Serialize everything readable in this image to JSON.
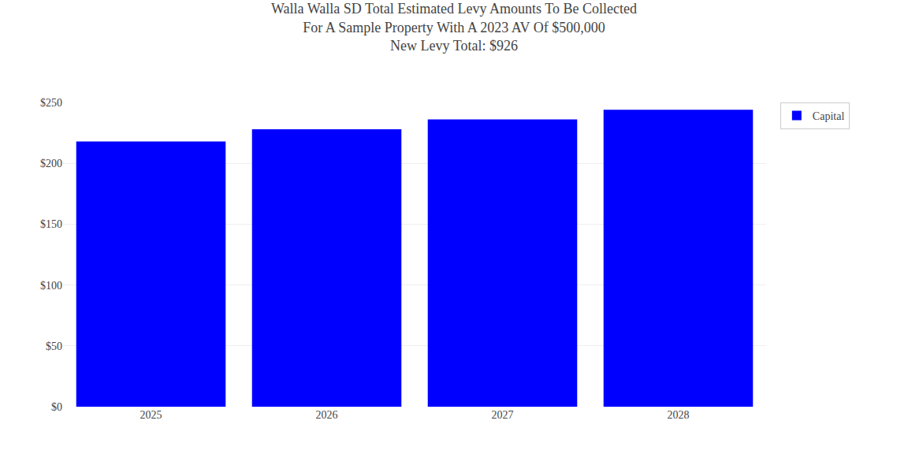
{
  "chart_data": {
    "type": "bar",
    "title": "Walla Walla SD Total Estimated Levy Amounts To Be Collected\nFor A Sample Property With A 2023 AV Of $500,000\nNew Levy Total: $926",
    "categories": [
      "2025",
      "2026",
      "2027",
      "2028"
    ],
    "series": [
      {
        "name": "Capital",
        "color": "#0000ff",
        "values": [
          218,
          228,
          236,
          244
        ]
      }
    ],
    "ylim": [
      0,
      250
    ],
    "yticks": [
      {
        "value": 0,
        "label": "$0"
      },
      {
        "value": 50,
        "label": "$50"
      },
      {
        "value": 100,
        "label": "$100"
      },
      {
        "value": 150,
        "label": "$150"
      },
      {
        "value": 200,
        "label": "$200"
      },
      {
        "value": 250,
        "label": "$250"
      }
    ],
    "grid": true,
    "legend": "right"
  }
}
